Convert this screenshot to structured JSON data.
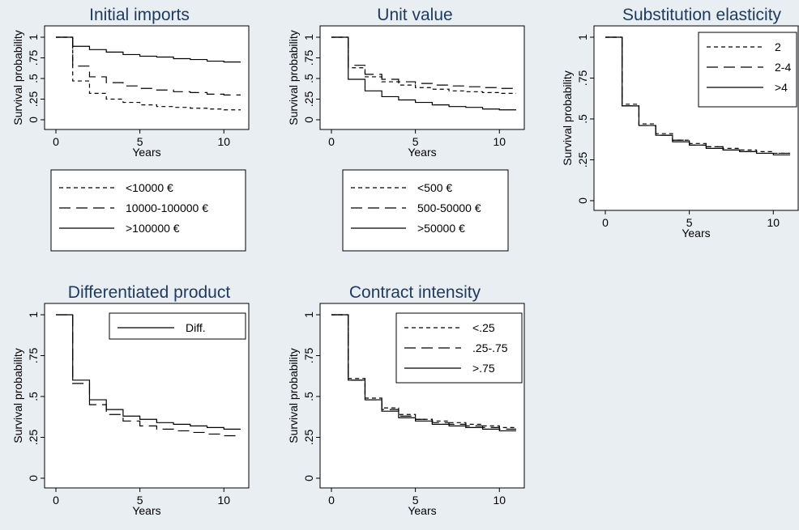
{
  "colors": {
    "background": "#e8eef2",
    "plot_area": "#ffffff",
    "title": "#1e3a5f",
    "line": "#000000"
  },
  "chart_data": [
    {
      "type": "line",
      "step": true,
      "title": "Initial imports",
      "xlabel": "Years",
      "ylabel": "Survival probability",
      "xlim": [
        0,
        11
      ],
      "ylim": [
        0,
        1
      ],
      "xticks": [
        {
          "v": 0,
          "label": "0"
        },
        {
          "v": 5,
          "label": "5"
        },
        {
          "v": 10,
          "label": "10"
        }
      ],
      "yticks": [
        {
          "v": 0,
          "label": "0"
        },
        {
          "v": 0.25,
          "label": ".25"
        },
        {
          "v": 0.5,
          "label": ".5"
        },
        {
          "v": 0.75,
          "label": ".75"
        },
        {
          "v": 1,
          "label": "1"
        }
      ],
      "legend_position": "below",
      "series": [
        {
          "name": "<10000 €",
          "dash": "dot",
          "x": [
            0,
            1,
            2,
            3,
            4,
            5,
            6,
            7,
            8,
            9,
            10,
            11
          ],
          "y": [
            1,
            0.47,
            0.32,
            0.25,
            0.21,
            0.18,
            0.16,
            0.15,
            0.14,
            0.13,
            0.12,
            0.12
          ]
        },
        {
          "name": "10000-100000 €",
          "dash": "long",
          "x": [
            0,
            1,
            2,
            3,
            4,
            5,
            6,
            7,
            8,
            9,
            10,
            11
          ],
          "y": [
            1,
            0.65,
            0.52,
            0.45,
            0.41,
            0.38,
            0.36,
            0.34,
            0.33,
            0.31,
            0.3,
            0.3
          ]
        },
        {
          "name": ">100000 €",
          "dash": "solid",
          "x": [
            0,
            1,
            2,
            3,
            4,
            5,
            6,
            7,
            8,
            9,
            10,
            11
          ],
          "y": [
            1,
            0.89,
            0.85,
            0.82,
            0.79,
            0.77,
            0.76,
            0.74,
            0.73,
            0.71,
            0.7,
            0.7
          ]
        }
      ]
    },
    {
      "type": "line",
      "step": true,
      "title": "Unit value",
      "xlabel": "Years",
      "ylabel": "Survival probability",
      "xlim": [
        0,
        11
      ],
      "ylim": [
        0,
        1
      ],
      "xticks": [
        {
          "v": 0,
          "label": "0"
        },
        {
          "v": 5,
          "label": "5"
        },
        {
          "v": 10,
          "label": "10"
        }
      ],
      "yticks": [
        {
          "v": 0,
          "label": "0"
        },
        {
          "v": 0.25,
          "label": ".25"
        },
        {
          "v": 0.5,
          "label": ".5"
        },
        {
          "v": 0.75,
          "label": ".75"
        },
        {
          "v": 1,
          "label": "1"
        }
      ],
      "legend_position": "below",
      "series": [
        {
          "name": "<500 €",
          "dash": "dot",
          "x": [
            0,
            1,
            2,
            3,
            4,
            5,
            6,
            7,
            8,
            9,
            10,
            11
          ],
          "y": [
            1,
            0.63,
            0.52,
            0.46,
            0.42,
            0.39,
            0.37,
            0.35,
            0.34,
            0.33,
            0.32,
            0.32
          ]
        },
        {
          "name": "500-50000 €",
          "dash": "long",
          "x": [
            0,
            1,
            2,
            3,
            4,
            5,
            6,
            7,
            8,
            9,
            10,
            11
          ],
          "y": [
            1,
            0.66,
            0.55,
            0.49,
            0.46,
            0.44,
            0.42,
            0.41,
            0.4,
            0.39,
            0.38,
            0.38
          ]
        },
        {
          "name": ">50000 €",
          "dash": "solid",
          "x": [
            0,
            1,
            2,
            3,
            4,
            5,
            6,
            7,
            8,
            9,
            10,
            11
          ],
          "y": [
            1,
            0.49,
            0.35,
            0.28,
            0.24,
            0.21,
            0.18,
            0.16,
            0.15,
            0.13,
            0.12,
            0.12
          ]
        }
      ]
    },
    {
      "type": "line",
      "step": true,
      "title": "Substitution elasticity",
      "xlabel": "Years",
      "ylabel": "Survival probability",
      "xlim": [
        0,
        11
      ],
      "ylim": [
        0,
        1
      ],
      "xticks": [
        {
          "v": 0,
          "label": "0"
        },
        {
          "v": 5,
          "label": "5"
        },
        {
          "v": 10,
          "label": "10"
        }
      ],
      "yticks": [
        {
          "v": 0,
          "label": "0"
        },
        {
          "v": 0.25,
          "label": ".25"
        },
        {
          "v": 0.5,
          "label": ".5"
        },
        {
          "v": 0.75,
          "label": ".75"
        },
        {
          "v": 1,
          "label": "1"
        }
      ],
      "legend_position": "top-right",
      "series": [
        {
          "name": "2",
          "dash": "dot",
          "x": [
            0,
            1,
            2,
            3,
            4,
            5,
            6,
            7,
            8,
            9,
            10,
            11
          ],
          "y": [
            1,
            0.59,
            0.47,
            0.41,
            0.37,
            0.35,
            0.33,
            0.32,
            0.31,
            0.3,
            0.29,
            0.29
          ]
        },
        {
          "name": "2-4",
          "dash": "long",
          "x": [
            0,
            1,
            2,
            3,
            4,
            5,
            6,
            7,
            8,
            9,
            10,
            11
          ],
          "y": [
            1,
            0.58,
            0.46,
            0.4,
            0.37,
            0.34,
            0.33,
            0.31,
            0.3,
            0.29,
            0.29,
            0.28
          ]
        },
        {
          "name": ">4",
          "dash": "solid",
          "x": [
            0,
            1,
            2,
            3,
            4,
            5,
            6,
            7,
            8,
            9,
            10,
            11
          ],
          "y": [
            1,
            0.58,
            0.46,
            0.4,
            0.36,
            0.34,
            0.32,
            0.31,
            0.3,
            0.29,
            0.28,
            0.28
          ]
        }
      ]
    },
    {
      "type": "line",
      "step": true,
      "title": "Differentiated product",
      "xlabel": "Years",
      "ylabel": "Survival probability",
      "xlim": [
        0,
        11
      ],
      "ylim": [
        0,
        1
      ],
      "xticks": [
        {
          "v": 0,
          "label": "0"
        },
        {
          "v": 5,
          "label": "5"
        },
        {
          "v": 10,
          "label": "10"
        }
      ],
      "yticks": [
        {
          "v": 0,
          "label": "0"
        },
        {
          "v": 0.25,
          "label": ".25"
        },
        {
          "v": 0.5,
          "label": ".5"
        },
        {
          "v": 0.75,
          "label": ".75"
        },
        {
          "v": 1,
          "label": "1"
        }
      ],
      "legend_position": "top-right",
      "series": [
        {
          "name": "",
          "dash": "long",
          "x": [
            0,
            1,
            2,
            3,
            4,
            5,
            6,
            7,
            8,
            9,
            10,
            11
          ],
          "y": [
            1,
            0.58,
            0.45,
            0.39,
            0.35,
            0.32,
            0.3,
            0.29,
            0.28,
            0.27,
            0.26,
            0.26
          ]
        },
        {
          "name": "Diff.",
          "dash": "solid",
          "x": [
            0,
            1,
            2,
            3,
            4,
            5,
            6,
            7,
            8,
            9,
            10,
            11
          ],
          "y": [
            1,
            0.6,
            0.48,
            0.42,
            0.38,
            0.36,
            0.34,
            0.33,
            0.32,
            0.31,
            0.3,
            0.3
          ]
        }
      ]
    },
    {
      "type": "line",
      "step": true,
      "title": "Contract intensity",
      "xlabel": "Years",
      "ylabel": "Survival probability",
      "xlim": [
        0,
        11
      ],
      "ylim": [
        0,
        1
      ],
      "xticks": [
        {
          "v": 0,
          "label": "0"
        },
        {
          "v": 5,
          "label": "5"
        },
        {
          "v": 10,
          "label": "10"
        }
      ],
      "yticks": [
        {
          "v": 0,
          "label": "0"
        },
        {
          "v": 0.25,
          "label": ".25"
        },
        {
          "v": 0.5,
          "label": ".5"
        },
        {
          "v": 0.75,
          "label": ".75"
        },
        {
          "v": 1,
          "label": "1"
        }
      ],
      "legend_position": "top-right",
      "series": [
        {
          "name": "<.25",
          "dash": "dot",
          "x": [
            0,
            1,
            2,
            3,
            4,
            5,
            6,
            7,
            8,
            9,
            10,
            11
          ],
          "y": [
            1,
            0.61,
            0.49,
            0.43,
            0.39,
            0.36,
            0.35,
            0.34,
            0.33,
            0.32,
            0.31,
            0.31
          ]
        },
        {
          "name": ".25-.75",
          "dash": "long",
          "x": [
            0,
            1,
            2,
            3,
            4,
            5,
            6,
            7,
            8,
            9,
            10,
            11
          ],
          "y": [
            1,
            0.6,
            0.48,
            0.42,
            0.38,
            0.36,
            0.34,
            0.33,
            0.32,
            0.31,
            0.3,
            0.3
          ]
        },
        {
          "name": ">.75",
          "dash": "solid",
          "x": [
            0,
            1,
            2,
            3,
            4,
            5,
            6,
            7,
            8,
            9,
            10,
            11
          ],
          "y": [
            1,
            0.6,
            0.48,
            0.41,
            0.37,
            0.35,
            0.33,
            0.32,
            0.31,
            0.3,
            0.29,
            0.29
          ]
        }
      ]
    }
  ]
}
